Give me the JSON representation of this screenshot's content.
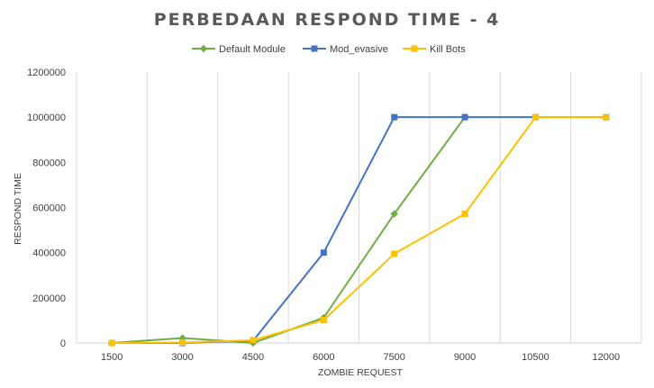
{
  "chart_data": {
    "type": "line",
    "title": "PERBEDAAN RESPOND TIME - 4",
    "xlabel": "ZOMBIE REQUEST",
    "ylabel": "RESPOND TIME",
    "categories": [
      "1500",
      "3000",
      "4500",
      "6000",
      "7500",
      "9000",
      "10500",
      "12000"
    ],
    "ylim": [
      0,
      1200000
    ],
    "yticks": [
      "0",
      "200000",
      "400000",
      "600000",
      "800000",
      "1000000",
      "1200000"
    ],
    "grid": "vertical",
    "legend_position": "top",
    "series": [
      {
        "name": "Default Module",
        "color": "#70AD47",
        "marker": "diamond",
        "values": [
          0,
          22000,
          0,
          112000,
          572000,
          1000000,
          null,
          null
        ]
      },
      {
        "name": "Mod_evasive",
        "color": "#4472C4",
        "marker": "square",
        "values": [
          0,
          0,
          10000,
          400000,
          1000000,
          1000000,
          1000000,
          1000000
        ]
      },
      {
        "name": "Kill Bots",
        "color": "#FFC000",
        "marker": "square",
        "values": [
          0,
          2000,
          12000,
          102000,
          395000,
          572000,
          1000000,
          1000000
        ]
      }
    ]
  }
}
